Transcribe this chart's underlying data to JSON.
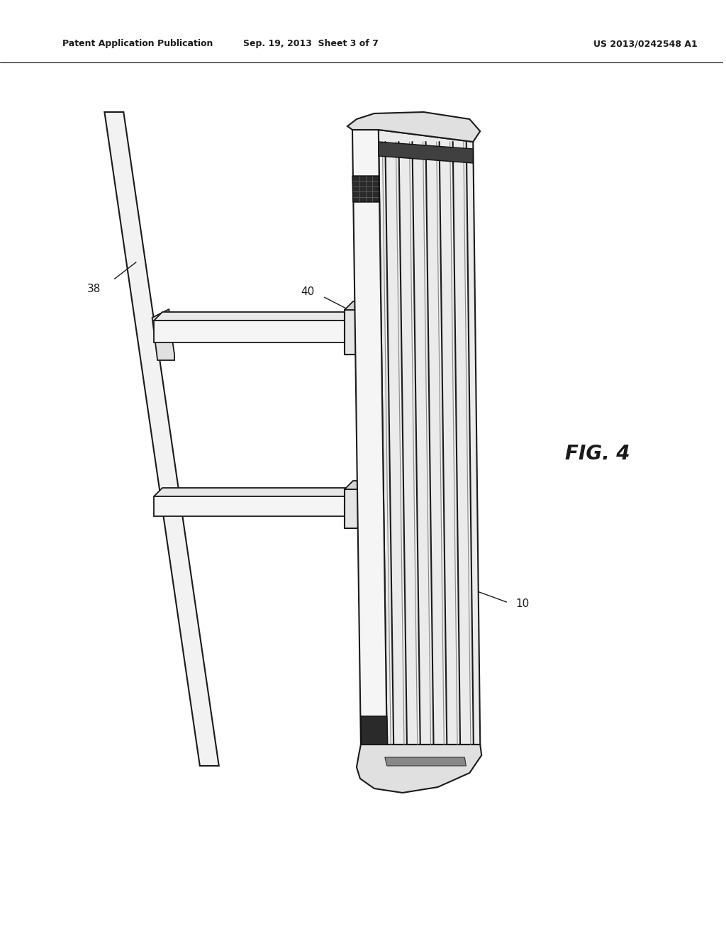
{
  "bg_color": "#ffffff",
  "line_color": "#1a1a1a",
  "header_left": "Patent Application Publication",
  "header_mid": "Sep. 19, 2013  Sheet 3 of 7",
  "header_right": "US 2013/0242548 A1",
  "fig_label": "FIG. 4",
  "label_38": "38",
  "label_40": "40",
  "label_10": "10"
}
